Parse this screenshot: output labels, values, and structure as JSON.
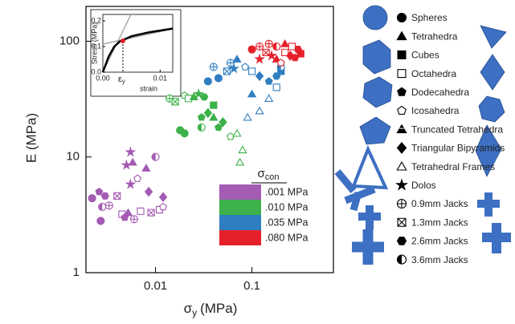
{
  "chart_data": [
    {
      "type": "scatter",
      "x_log": true,
      "y_log": true,
      "x_label": {
        "base": "σ",
        "sub": "y",
        "unit": "(MPa)"
      },
      "y_label": "E (MPa)",
      "xlim": [
        0.0019,
        0.7
      ],
      "ylim": [
        1,
        200
      ],
      "xticks": [
        0.01,
        0.1
      ],
      "yticks": [
        1,
        10,
        100
      ],
      "legend_title": {
        "base": "σ",
        "sub": "con"
      },
      "shape_legend": [
        "Spheres",
        "Tetrahedra",
        "Cubes",
        "Octahedra",
        "Dodecahedra",
        "Icosahedra",
        "Truncated Tetrahedra",
        "Triangular Bipyramids",
        "Tetrahedral Frames",
        "Dolos",
        "0.9mm Jacks",
        "1.3mm Jacks",
        "2.6mm Jacks",
        "3.6mm Jacks"
      ],
      "series": [
        {
          "name": ".001 MPa",
          "color": "#a35bb4",
          "x": [
            0.0022,
            0.0026,
            0.003,
            0.0028,
            0.0027,
            0.0033,
            0.004,
            0.0045,
            0.0048,
            0.0052,
            0.0055,
            0.005,
            0.0055,
            0.0058,
            0.0065,
            0.007,
            0.008,
            0.0085,
            0.009,
            0.01,
            0.011,
            0.012,
            0.012,
            0.006
          ],
          "values": [
            4.4,
            5.0,
            4.6,
            3.7,
            2.8,
            3.8,
            4.6,
            3.2,
            3.0,
            3.3,
            5.8,
            8.5,
            11,
            9,
            6.5,
            3.4,
            8,
            5,
            3.3,
            10,
            3.5,
            4.5,
            3.7,
            2.9
          ],
          "shapes": [
            0,
            4,
            12,
            13,
            0,
            10,
            11,
            3,
            4,
            1,
            9,
            9,
            9,
            1,
            5,
            3,
            1,
            7,
            11,
            13,
            3,
            7,
            5,
            10
          ]
        },
        {
          "name": ".010 MPa",
          "color": "#3db14a",
          "x": [
            0.014,
            0.016,
            0.018,
            0.02,
            0.022,
            0.025,
            0.028,
            0.032,
            0.02,
            0.03,
            0.035,
            0.04,
            0.045,
            0.05,
            0.06,
            0.07,
            0.08,
            0.075,
            0.04,
            0.03
          ],
          "values": [
            32,
            30,
            17,
            34,
            32,
            33,
            35,
            33,
            16,
            22,
            24,
            22,
            18,
            20,
            15,
            16,
            11.5,
            9,
            28,
            18
          ],
          "shapes": [
            10,
            11,
            0,
            5,
            3,
            1,
            9,
            12,
            0,
            4,
            7,
            1,
            4,
            7,
            5,
            8,
            8,
            8,
            2,
            13
          ]
        },
        {
          "name": ".035 MPa",
          "color": "#2f7ec1",
          "x": [
            0.035,
            0.04,
            0.045,
            0.055,
            0.06,
            0.065,
            0.07,
            0.085,
            0.1,
            0.12,
            0.15,
            0.18,
            0.2,
            0.15,
            0.12,
            0.18,
            0.1,
            0.09,
            0.2
          ],
          "values": [
            45,
            60,
            48,
            55,
            65,
            58,
            70,
            60,
            55,
            50,
            45,
            50,
            55,
            32,
            25,
            40,
            35,
            22,
            60
          ],
          "shapes": [
            0,
            10,
            0,
            11,
            10,
            9,
            1,
            5,
            3,
            7,
            4,
            12,
            2,
            8,
            8,
            3,
            1,
            8,
            13
          ]
        },
        {
          "name": ".080 MPa",
          "color": "#e5202a",
          "x": [
            0.1,
            0.12,
            0.14,
            0.16,
            0.18,
            0.2,
            0.22,
            0.25,
            0.28,
            0.3,
            0.32,
            0.18,
            0.15,
            0.12,
            0.22,
            0.26
          ],
          "values": [
            85,
            90,
            80,
            75,
            70,
            65,
            80,
            75,
            72,
            85,
            78,
            90,
            95,
            70,
            95,
            90
          ],
          "shapes": [
            0,
            10,
            11,
            9,
            1,
            5,
            3,
            7,
            4,
            12,
            2,
            13,
            10,
            9,
            1,
            3
          ]
        }
      ]
    },
    {
      "type": "line",
      "x_label": "strain",
      "y_label": "Stress (MPa)",
      "marker_label": {
        "base": "ε",
        "sub": "y"
      },
      "xlim": [
        0,
        0.0122
      ],
      "ylim": [
        0,
        0.225
      ],
      "xticks": [
        {
          "value": 0,
          "label": "0.00"
        },
        {
          "value": 0.01,
          "label": "0.01"
        }
      ],
      "yticks": [
        {
          "value": 0,
          "label": "0.0"
        },
        {
          "value": 0.1,
          "label": "0.1"
        },
        {
          "value": 0.2,
          "label": "0.2"
        }
      ],
      "series": [
        {
          "color": "#000000",
          "x": [
            0,
            0.001,
            0.002,
            0.003,
            0.005,
            0.008,
            0.0122
          ],
          "values": [
            0,
            0.06,
            0.1,
            0.12,
            0.14,
            0.155,
            0.17
          ]
        }
      ],
      "point": {
        "color": "#e5202a",
        "x": 0.0035,
        "value": 0.122
      }
    }
  ]
}
